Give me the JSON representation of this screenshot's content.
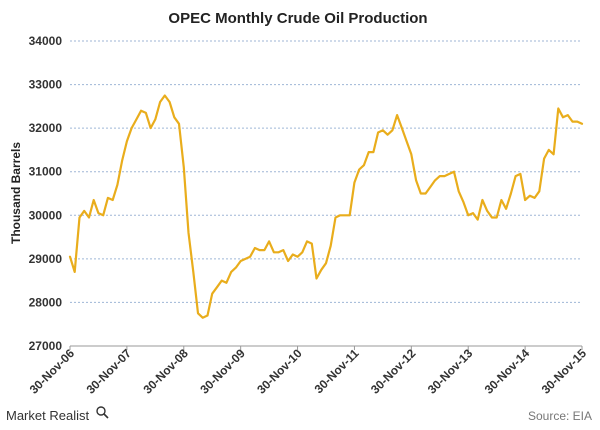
{
  "chart_data": {
    "type": "line",
    "title": "OPEC Monthly Crude Oil Production",
    "xlabel": "",
    "ylabel": "Thousand Barrels",
    "ylim": [
      27000,
      34000
    ],
    "yticks": [
      "27000",
      "28000",
      "29000",
      "30000",
      "31000",
      "32000",
      "33000",
      "34000"
    ],
    "xtick_labels": [
      "30-Nov-06",
      "30-Nov-07",
      "30-Nov-08",
      "30-Nov-09",
      "30-Nov-10",
      "30-Nov-11",
      "30-Nov-12",
      "30-Nov-13",
      "30-Nov-14",
      "30-Nov-15"
    ],
    "grid": true,
    "line_color": "#e9ad1c",
    "series": [
      {
        "values": [
          29050,
          28700,
          29950,
          30100,
          29950,
          30350,
          30050,
          30000,
          30400,
          30350,
          30700,
          31250,
          31700,
          32000,
          32200,
          32400,
          32350,
          32000,
          32200,
          32600,
          32750,
          32600,
          32250,
          32100,
          31100,
          29600,
          28700,
          27750,
          27650,
          27700,
          28200,
          28350,
          28500,
          28450,
          28700,
          28800,
          28950,
          29000,
          29050,
          29250,
          29200,
          29200,
          29400,
          29150,
          29150,
          29200,
          28950,
          29100,
          29050,
          29150,
          29400,
          29350,
          28550,
          28750,
          28900,
          29300,
          29950,
          30000,
          30000,
          30000,
          30750,
          31050,
          31150,
          31450,
          31450,
          31900,
          31950,
          31850,
          31950,
          32300,
          32000,
          31700,
          31400,
          30800,
          30500,
          30500,
          30650,
          30800,
          30900,
          30900,
          30950,
          31000,
          30550,
          30300,
          30000,
          30050,
          29900,
          30350,
          30100,
          29950,
          29950,
          30350,
          30150,
          30500,
          30900,
          30950,
          30350,
          30450,
          30400,
          30550,
          31300,
          31500,
          31400,
          32450,
          32250,
          32300,
          32150,
          32150,
          32100
        ]
      }
    ]
  },
  "footer": {
    "brand": "Market Realist",
    "source": "Source: EIA"
  }
}
